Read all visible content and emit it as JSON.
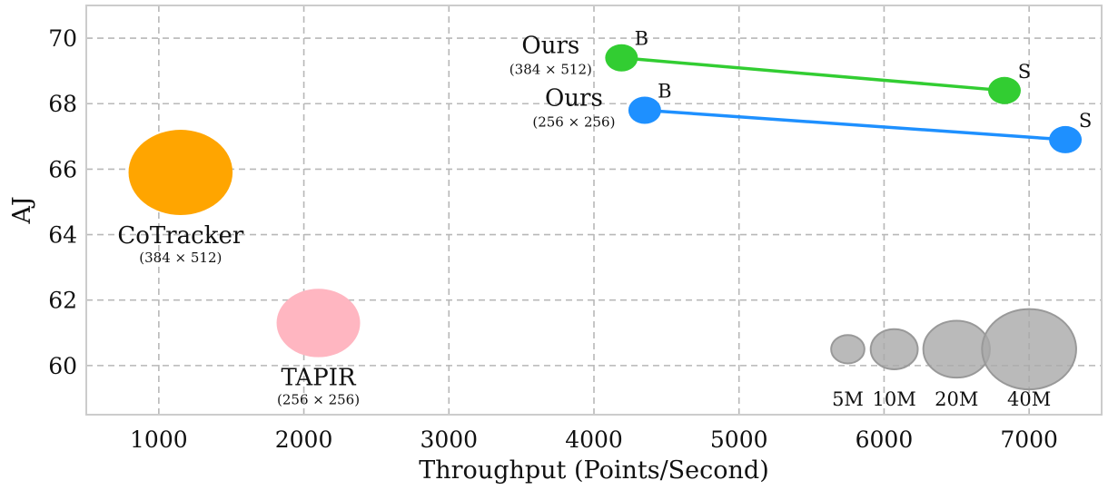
{
  "chart_data": {
    "type": "scatter",
    "title": "",
    "xlabel": "Throughput (Points/Second)",
    "ylabel": "AJ",
    "xlim": [
      500,
      7500
    ],
    "ylim": [
      58.5,
      71
    ],
    "xticks": [
      1000,
      2000,
      3000,
      4000,
      5000,
      6000,
      7000
    ],
    "yticks": [
      60,
      62,
      64,
      66,
      68,
      70
    ],
    "grid": true,
    "points": [
      {
        "label": "CoTracker",
        "sublabel": "(384 × 512)",
        "x": 1150,
        "y": 65.9,
        "params_m": 45,
        "color": "#ffa500"
      },
      {
        "label": "TAPIR",
        "sublabel": "(256 × 256)",
        "x": 2100,
        "y": 61.3,
        "params_m": 29,
        "color": "#ffb6c1"
      }
    ],
    "series": [
      {
        "label": "Ours",
        "sublabel": "(384 × 512)",
        "color": "#32cd32",
        "points": [
          {
            "variant": "B",
            "x": 4190,
            "y": 69.4
          },
          {
            "variant": "S",
            "x": 6830,
            "y": 68.4
          }
        ]
      },
      {
        "label": "Ours",
        "sublabel": "(256 × 256)",
        "color": "#1e90ff",
        "points": [
          {
            "variant": "B",
            "x": 4350,
            "y": 67.8
          },
          {
            "variant": "S",
            "x": 7250,
            "y": 66.9
          }
        ]
      }
    ],
    "size_legend": {
      "color": "#a9a9a9",
      "y": 60.5,
      "entries": [
        {
          "label": "5M",
          "x": 5750,
          "params_m": 5
        },
        {
          "label": "10M",
          "x": 6070,
          "params_m": 10
        },
        {
          "label": "20M",
          "x": 6500,
          "params_m": 20
        },
        {
          "label": "40M",
          "x": 7000,
          "params_m": 40
        }
      ]
    }
  }
}
